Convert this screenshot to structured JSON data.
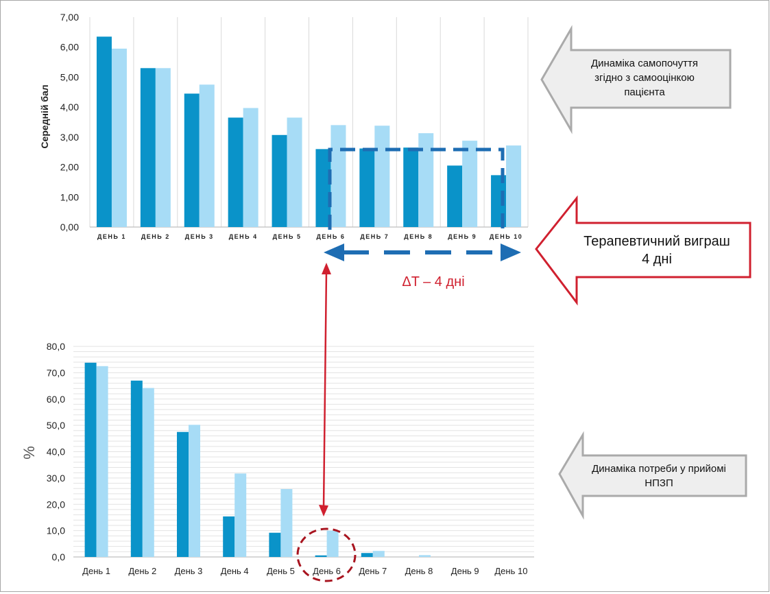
{
  "colors": {
    "series_dark": "#0a93c9",
    "series_light": "#a7dcf6",
    "grid": "#d9d9d9",
    "axis": "#bfbfbf",
    "frame": "#a6a6a6",
    "gray_arrow_fill": "#eeeeee",
    "gray_arrow_stroke": "#aaaaaa",
    "red": "#d0202f",
    "dark_red": "#a8141f",
    "dash_blue": "#1e6db3"
  },
  "annotations": {
    "self_assessment": [
      "Динаміка самопочуття",
      "згідно з самооцінкою",
      "пацієнта"
    ],
    "therapeutic_gain": [
      "Терапевтичний виграш",
      "4 дні"
    ],
    "delta_t": "ΔT – 4 дні",
    "nsaid_need": [
      "Динаміка потреби у прийомі",
      "НПЗП"
    ]
  },
  "chart_data": [
    {
      "type": "bar",
      "ylabel": "Середній бал",
      "ylim": [
        0,
        7
      ],
      "yticks": [
        "0,00",
        "1,00",
        "2,00",
        "3,00",
        "4,00",
        "5,00",
        "6,00",
        "7,00"
      ],
      "categories": [
        "ДЕНЬ 1",
        "ДЕНЬ 2",
        "ДЕНЬ 3",
        "ДЕНЬ 4",
        "ДЕНЬ 5",
        "ДЕНЬ 6",
        "ДЕНЬ 7",
        "ДЕНЬ 8",
        "ДЕНЬ 9",
        "ДЕНЬ 10"
      ],
      "series": [
        {
          "values": [
            6.35,
            5.3,
            4.45,
            3.65,
            3.07,
            2.6,
            2.62,
            2.65,
            2.05,
            1.73
          ]
        },
        {
          "values": [
            5.95,
            5.3,
            4.75,
            3.97,
            3.65,
            3.4,
            3.38,
            3.13,
            2.88,
            2.72
          ]
        }
      ],
      "grid": "vertical"
    },
    {
      "type": "bar",
      "ylabel": "%",
      "ylim": [
        0,
        80
      ],
      "yticks": [
        "0,0",
        "10,0",
        "20,0",
        "30,0",
        "40,0",
        "50,0",
        "60,0",
        "70,0",
        "80,0"
      ],
      "categories": [
        "День 1",
        "День 2",
        "День 3",
        "День 4",
        "День 5",
        "День 6",
        "День 7",
        "День 8",
        "День 9",
        "День 10"
      ],
      "series": [
        {
          "values": [
            73.8,
            67.0,
            47.5,
            15.4,
            9.2,
            0.6,
            1.5,
            0.0,
            0.0,
            0.0
          ]
        },
        {
          "values": [
            72.5,
            64.2,
            50.2,
            31.7,
            25.8,
            10.0,
            2.3,
            0.7,
            0.0,
            0.0
          ]
        }
      ],
      "grid": "horizontal"
    }
  ]
}
